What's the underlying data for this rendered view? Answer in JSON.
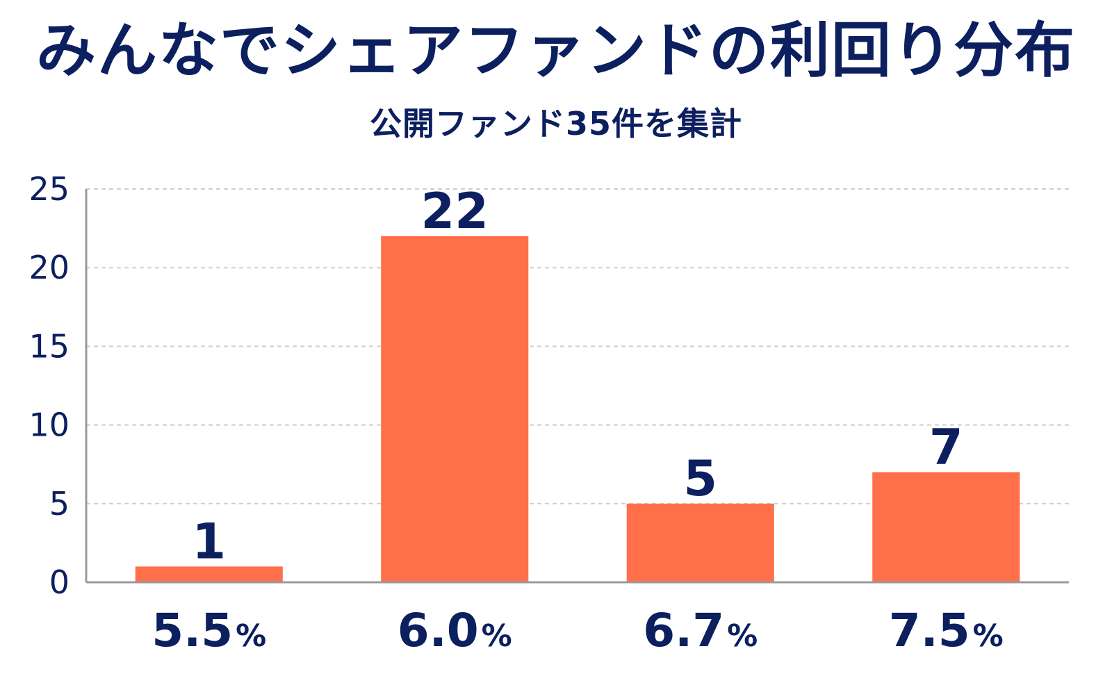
{
  "colors": {
    "title": "#0c1f5f",
    "text": "#0c1f5f",
    "bar": "#ff704a",
    "grid": "#cfcfcf",
    "axis": "#9a9a9a"
  },
  "chart_data": {
    "type": "bar",
    "title": "みんなでシェアファンドの利回り分布",
    "subtitle": "公開ファンド35件を集計",
    "categories": [
      "5.5%",
      "6.0%",
      "6.7%",
      "7.5%"
    ],
    "values": [
      1,
      22,
      5,
      7
    ],
    "ylim": [
      0,
      25
    ],
    "yticks": [
      0,
      5,
      10,
      15,
      20,
      25
    ],
    "grid": true,
    "data_labels": true,
    "legend": "none"
  }
}
